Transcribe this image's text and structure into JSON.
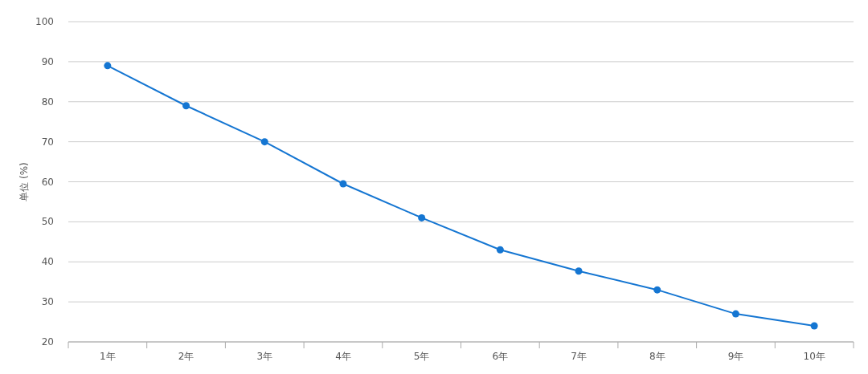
{
  "chart_data": {
    "type": "line",
    "ylabel": "单位 (%)",
    "categories": [
      "1年",
      "2年",
      "3年",
      "4年",
      "5年",
      "6年",
      "7年",
      "8年",
      "9年",
      "10年"
    ],
    "series": [
      {
        "color": "#1576d2",
        "values": [
          89,
          79,
          70,
          59.5,
          51,
          43,
          37.7,
          33,
          27,
          24
        ]
      }
    ],
    "ylim": [
      20,
      100
    ],
    "yticks": [
      20,
      30,
      40,
      50,
      60,
      70,
      80,
      90,
      100
    ],
    "grid": "y",
    "marker": "circle",
    "line_style": "solid"
  }
}
